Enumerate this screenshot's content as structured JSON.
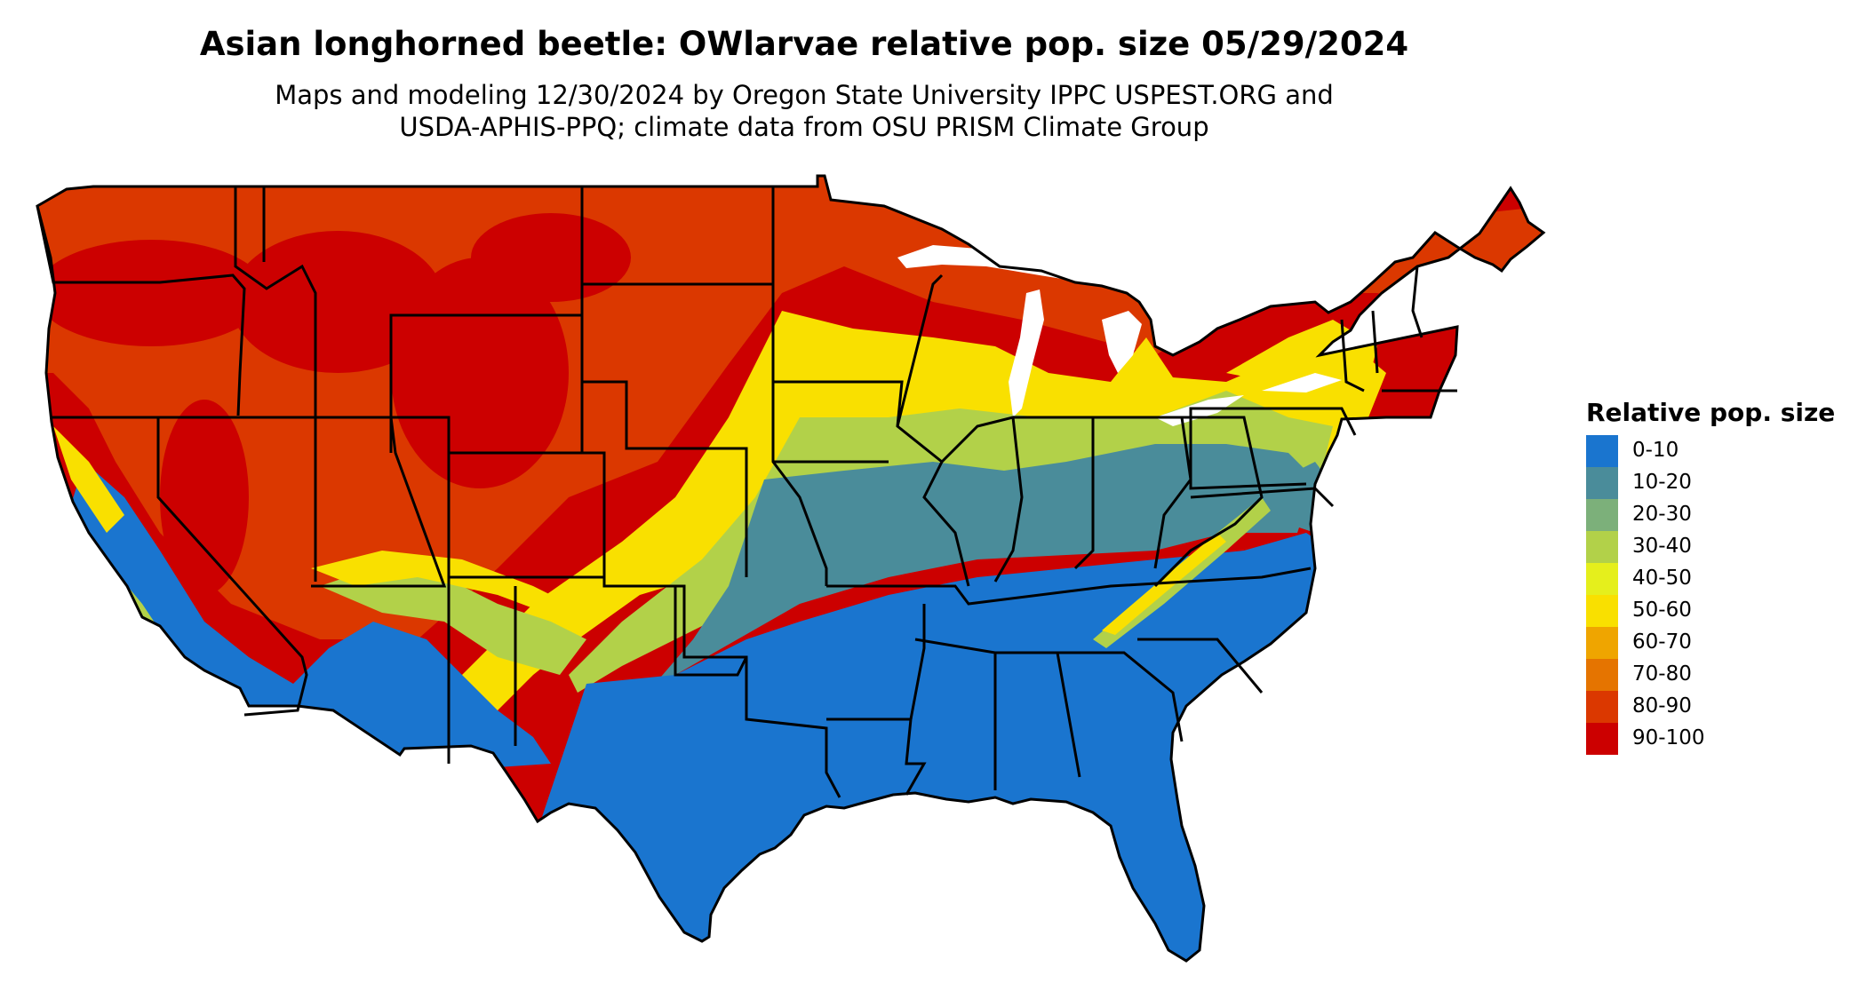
{
  "title": "Asian longhorned beetle: OWlarvae relative pop. size 05/29/2024",
  "subtitle_line1": "Maps and modeling 12/30/2024 by Oregon State University IPPC USPEST.ORG and",
  "subtitle_line2": "USDA-APHIS-PPQ; climate data from OSU PRISM Climate Group",
  "legend": {
    "title": "Relative pop. size",
    "items": [
      {
        "label": "0-10",
        "color": "#1a75cf"
      },
      {
        "label": "10-20",
        "color": "#4a8c9a"
      },
      {
        "label": "20-30",
        "color": "#7cb07a"
      },
      {
        "label": "30-40",
        "color": "#b2d149"
      },
      {
        "label": "40-50",
        "color": "#e5ef1c"
      },
      {
        "label": "50-60",
        "color": "#f9e000"
      },
      {
        "label": "60-70",
        "color": "#efa500"
      },
      {
        "label": "70-80",
        "color": "#e57400"
      },
      {
        "label": "80-90",
        "color": "#db3800"
      },
      {
        "label": "90-100",
        "color": "#cc0000"
      }
    ]
  }
}
